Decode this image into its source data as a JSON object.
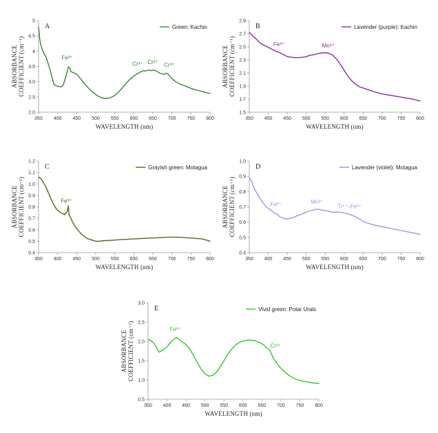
{
  "chart_data": [
    {
      "type": "line",
      "panel": "A",
      "legend": "Green: Kachin",
      "color": "#2e8b2e",
      "xlabel": "WAVELENGTH (nm)",
      "ylabel": [
        "ABSORBANCE",
        "COEFFICIENT (cm⁻¹)"
      ],
      "xlim": [
        350,
        800
      ],
      "ylim": [
        2.0,
        5.0
      ],
      "xticks": [
        350,
        400,
        450,
        500,
        550,
        600,
        650,
        700,
        750,
        800
      ],
      "yticks": [
        "2.0",
        "2.5",
        "3.0",
        "3.5",
        "4",
        "4.5",
        "5"
      ],
      "series": [
        {
          "name": "Green: Kachin",
          "x": [
            350,
            353,
            356,
            360,
            365,
            370,
            375,
            380,
            385,
            390,
            395,
            400,
            405,
            410,
            415,
            420,
            425,
            428,
            432,
            435,
            440,
            445,
            450,
            460,
            470,
            480,
            490,
            500,
            510,
            520,
            530,
            540,
            550,
            560,
            570,
            580,
            590,
            600,
            610,
            620,
            625,
            630,
            635,
            640,
            645,
            650,
            655,
            660,
            665,
            670,
            675,
            680,
            685,
            690,
            695,
            700,
            710,
            720,
            730,
            740,
            750,
            760,
            770,
            780,
            790,
            800
          ],
          "y": [
            4.8,
            4.4,
            4.2,
            4.05,
            3.9,
            3.8,
            3.6,
            3.4,
            3.15,
            2.92,
            2.87,
            2.85,
            2.84,
            2.83,
            2.9,
            3.1,
            3.32,
            3.48,
            3.45,
            3.33,
            3.3,
            3.28,
            3.25,
            3.1,
            2.95,
            2.8,
            2.68,
            2.58,
            2.5,
            2.46,
            2.45,
            2.48,
            2.55,
            2.66,
            2.8,
            2.95,
            3.08,
            3.18,
            3.27,
            3.33,
            3.36,
            3.35,
            3.37,
            3.38,
            3.36,
            3.38,
            3.37,
            3.35,
            3.3,
            3.27,
            3.26,
            3.24,
            3.28,
            3.25,
            3.18,
            3.1,
            3.0,
            2.93,
            2.88,
            2.83,
            2.78,
            2.74,
            2.71,
            2.68,
            2.64,
            2.61
          ]
        }
      ],
      "annotations": [
        {
          "text": "Fe³⁺",
          "x": 425,
          "y": 3.72
        },
        {
          "text": "Cr³⁺",
          "x": 610,
          "y": 3.52
        },
        {
          "text": "Cr³⁺",
          "x": 650,
          "y": 3.58
        },
        {
          "text": "Cr³⁺",
          "x": 693,
          "y": 3.49
        }
      ]
    },
    {
      "type": "line",
      "panel": "B",
      "legend": "Lavender (purple): Kachin",
      "color": "#8a2a9a",
      "xlabel": "WAVELENGTH (nm)",
      "ylabel": [
        "ABSORBANCE",
        "COEFFICIENT (cm⁻¹)"
      ],
      "xlim": [
        350,
        800
      ],
      "ylim": [
        1.5,
        2.9
      ],
      "xticks": [
        350,
        400,
        450,
        500,
        550,
        600,
        650,
        700,
        750,
        800
      ],
      "yticks": [
        "1.5",
        "1.7",
        "1.9",
        "2.1",
        "2.3",
        "2.5",
        "2.7",
        "2.9"
      ],
      "series": [
        {
          "name": "Lavender (purple): Kachin",
          "x": [
            350,
            360,
            370,
            380,
            390,
            400,
            410,
            420,
            430,
            440,
            450,
            460,
            470,
            480,
            490,
            500,
            510,
            520,
            530,
            540,
            550,
            560,
            570,
            580,
            590,
            600,
            610,
            620,
            630,
            640,
            650,
            660,
            670,
            680,
            700,
            720,
            740,
            760,
            780,
            800
          ],
          "y": [
            2.72,
            2.66,
            2.61,
            2.55,
            2.52,
            2.49,
            2.46,
            2.43,
            2.41,
            2.38,
            2.35,
            2.34,
            2.335,
            2.335,
            2.34,
            2.35,
            2.37,
            2.38,
            2.395,
            2.405,
            2.41,
            2.4,
            2.37,
            2.31,
            2.23,
            2.14,
            2.05,
            1.98,
            1.93,
            1.89,
            1.87,
            1.85,
            1.83,
            1.81,
            1.78,
            1.76,
            1.74,
            1.72,
            1.7,
            1.67
          ]
        }
      ],
      "annotations": [
        {
          "text": "Fe³⁺",
          "x": 428,
          "y": 2.51
        },
        {
          "text": "Mn³⁺",
          "x": 558,
          "y": 2.49
        }
      ]
    },
    {
      "type": "line",
      "panel": "C",
      "legend": "Grayish green: Motagua",
      "color": "#5a6418",
      "xlabel": "WAVELENGTH (nm)",
      "ylabel": [
        "ABSORBANCE",
        "COEFFICIENT (cm⁻¹)"
      ],
      "xlim": [
        350,
        800
      ],
      "ylim": [
        0.4,
        1.2
      ],
      "xticks": [
        350,
        400,
        450,
        500,
        550,
        600,
        650,
        700,
        750,
        800
      ],
      "yticks": [
        "0.4",
        "0.5",
        "0.6",
        "0.7",
        "0.8",
        "0.9",
        "1.0",
        "1.1",
        "1.2"
      ],
      "series": [
        {
          "name": "Grayish green: Motagua",
          "x": [
            350,
            355,
            360,
            365,
            370,
            375,
            380,
            385,
            390,
            395,
            400,
            405,
            410,
            415,
            418,
            420,
            423,
            425,
            427,
            428,
            429,
            430,
            435,
            440,
            450,
            460,
            470,
            480,
            490,
            500,
            510,
            520,
            530,
            550,
            570,
            600,
            630,
            660,
            690,
            700,
            720,
            740,
            760,
            780,
            790,
            800
          ],
          "y": [
            1.06,
            1.05,
            1.03,
            1.0,
            0.97,
            0.93,
            0.89,
            0.85,
            0.82,
            0.79,
            0.77,
            0.76,
            0.745,
            0.74,
            0.73,
            0.74,
            0.75,
            0.76,
            0.79,
            0.81,
            0.77,
            0.73,
            0.7,
            0.66,
            0.61,
            0.57,
            0.54,
            0.52,
            0.51,
            0.5,
            0.5,
            0.505,
            0.505,
            0.51,
            0.515,
            0.52,
            0.525,
            0.53,
            0.535,
            0.535,
            0.535,
            0.53,
            0.525,
            0.52,
            0.51,
            0.5
          ]
        }
      ],
      "annotations": [
        {
          "text": "Fe³⁺",
          "x": 423,
          "y": 0.835
        }
      ]
    },
    {
      "type": "line",
      "panel": "D",
      "legend": "Lavender (violet): Motagua",
      "color": "#9b95e0",
      "xlabel": "WAVELENGTH (nm)",
      "ylabel": [
        "ABSORBANCE",
        "COEFFICIENT (cm⁻¹)"
      ],
      "xlim": [
        350,
        800
      ],
      "ylim": [
        0.4,
        1.0
      ],
      "xticks": [
        350,
        400,
        450,
        500,
        550,
        600,
        650,
        700,
        750,
        800
      ],
      "yticks": [
        "0.4",
        "0.5",
        "0.6",
        "0.7",
        "0.8",
        "0.9",
        "1.0"
      ],
      "series": [
        {
          "name": "Lavender (violet): Motagua",
          "x": [
            350,
            355,
            360,
            365,
            370,
            375,
            380,
            385,
            390,
            395,
            400,
            405,
            410,
            415,
            420,
            425,
            430,
            440,
            450,
            460,
            470,
            480,
            490,
            500,
            510,
            520,
            530,
            540,
            550,
            560,
            570,
            580,
            590,
            600,
            610,
            620,
            630,
            640,
            650,
            660,
            680,
            700,
            720,
            740,
            760,
            780,
            800
          ],
          "y": [
            0.89,
            0.87,
            0.84,
            0.81,
            0.79,
            0.77,
            0.75,
            0.73,
            0.715,
            0.7,
            0.69,
            0.68,
            0.67,
            0.66,
            0.655,
            0.65,
            0.635,
            0.625,
            0.62,
            0.625,
            0.635,
            0.645,
            0.655,
            0.665,
            0.675,
            0.68,
            0.685,
            0.68,
            0.675,
            0.67,
            0.665,
            0.665,
            0.665,
            0.66,
            0.655,
            0.645,
            0.635,
            0.62,
            0.605,
            0.595,
            0.58,
            0.57,
            0.56,
            0.55,
            0.54,
            0.53,
            0.52
          ]
        }
      ],
      "annotations": [
        {
          "text": "Fe³⁺",
          "x": 420,
          "y": 0.705
        },
        {
          "text": "Mn³⁺",
          "x": 528,
          "y": 0.72
        },
        {
          "text": "Ti⁴⁺–Fe²⁺",
          "x": 614,
          "y": 0.69
        }
      ]
    },
    {
      "type": "line",
      "panel": "E",
      "legend": "Vivid green: Polar Urals",
      "color": "#2ec82e",
      "xlabel": "WAVELENGTH (nm)",
      "ylabel": [
        "ABSORBANCE",
        "COEFFICIENT (cm⁻¹)"
      ],
      "xlim": [
        350,
        800
      ],
      "ylim": [
        0.5,
        3.0
      ],
      "xticks": [
        350,
        400,
        450,
        500,
        550,
        600,
        650,
        700,
        750,
        800
      ],
      "yticks": [
        "0.5",
        "1.0",
        "1.5",
        "2.0",
        "2.5",
        "3.0"
      ],
      "series": [
        {
          "name": "Vivid green: Polar Urals",
          "x": [
            350,
            360,
            365,
            370,
            375,
            380,
            385,
            390,
            395,
            400,
            405,
            410,
            415,
            420,
            425,
            430,
            435,
            440,
            450,
            460,
            470,
            480,
            490,
            500,
            510,
            520,
            530,
            540,
            550,
            560,
            570,
            580,
            590,
            600,
            610,
            620,
            625,
            630,
            635,
            640,
            645,
            650,
            655,
            660,
            665,
            670,
            675,
            680,
            690,
            700,
            710,
            720,
            730,
            740,
            750,
            760,
            770,
            780,
            790,
            800
          ],
          "y": [
            2.06,
            2.0,
            1.95,
            1.88,
            1.78,
            1.72,
            1.76,
            1.78,
            1.82,
            1.86,
            1.92,
            1.98,
            2.03,
            2.07,
            2.1,
            2.06,
            2.03,
            1.99,
            1.92,
            1.8,
            1.63,
            1.45,
            1.28,
            1.16,
            1.1,
            1.12,
            1.2,
            1.34,
            1.5,
            1.66,
            1.8,
            1.9,
            1.97,
            2.01,
            2.03,
            2.04,
            2.02,
            2.03,
            2.0,
            1.98,
            1.97,
            1.94,
            1.91,
            1.85,
            1.82,
            1.78,
            1.68,
            1.57,
            1.42,
            1.3,
            1.21,
            1.13,
            1.07,
            1.02,
            0.99,
            0.97,
            0.95,
            0.93,
            0.92,
            0.91
          ]
        }
      ],
      "annotations": [
        {
          "text": "Fe³⁺",
          "x": 422,
          "y": 2.27
        },
        {
          "text": "Cr³⁺",
          "x": 686,
          "y": 1.84
        }
      ]
    }
  ]
}
